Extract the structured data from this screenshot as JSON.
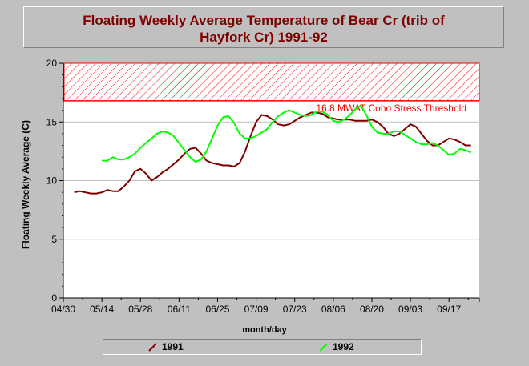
{
  "title_lines": [
    "Floating Weekly Average Temperature of Bear Cr (trib of",
    "Hayfork Cr) 1991-92"
  ],
  "chart_data": {
    "type": "line",
    "title": "Floating Weekly Average Temperature of Bear Cr (trib of Hayfork Cr) 1991-92",
    "xlabel": "month/day",
    "ylabel": "Floating Weekly Average (C)",
    "x_ticks": [
      "04/30",
      "05/14",
      "05/28",
      "06/11",
      "06/25",
      "07/09",
      "07/23",
      "08/06",
      "08/20",
      "09/03",
      "09/17"
    ],
    "x_unit": "day offset from 04/30",
    "xlim": [
      0,
      151
    ],
    "ylim": [
      0,
      20
    ],
    "y_ticks": [
      0,
      5,
      10,
      15,
      20
    ],
    "grid": "horizontal",
    "threshold": {
      "value": 16.8,
      "label": "16.8 MWAT Coho Stress Threshold",
      "color": "#ff0000",
      "band_top": 20
    },
    "series": [
      {
        "name": "1991",
        "color": "#800000",
        "x": [
          4,
          6,
          8,
          10,
          12,
          14,
          16,
          18,
          20,
          22,
          24,
          26,
          28,
          30,
          32,
          34,
          36,
          38,
          40,
          42,
          44,
          46,
          48,
          50,
          52,
          54,
          56,
          58,
          60,
          62,
          64,
          66,
          68,
          70,
          72,
          74,
          76,
          78,
          80,
          82,
          84,
          86,
          88,
          90,
          92,
          94,
          96,
          98,
          100,
          102,
          104,
          106,
          108,
          110,
          112,
          114,
          116,
          118,
          120,
          122,
          124,
          126,
          128,
          130,
          132,
          134,
          136,
          138,
          140,
          142,
          144,
          146,
          148
        ],
        "y": [
          9.0,
          9.1,
          9.0,
          8.9,
          8.9,
          9.0,
          9.2,
          9.1,
          9.1,
          9.5,
          10.0,
          10.8,
          11.0,
          10.6,
          10.0,
          10.3,
          10.7,
          11.0,
          11.4,
          11.8,
          12.3,
          12.7,
          12.8,
          12.3,
          11.7,
          11.5,
          11.4,
          11.3,
          11.3,
          11.2,
          11.5,
          12.5,
          13.8,
          15.0,
          15.6,
          15.5,
          15.2,
          14.8,
          14.7,
          14.8,
          15.1,
          15.4,
          15.6,
          15.8,
          15.8,
          15.7,
          15.4,
          15.3,
          15.2,
          15.2,
          15.2,
          15.1,
          15.1,
          15.1,
          15.2,
          15.0,
          14.6,
          14.0,
          13.8,
          14.0,
          14.4,
          14.8,
          14.6,
          14.0,
          13.4,
          13.0,
          13.0,
          13.3,
          13.6,
          13.5,
          13.3,
          13.0,
          13.0
        ]
      },
      {
        "name": "1992",
        "color": "#00ff00",
        "x": [
          14,
          16,
          18,
          20,
          22,
          24,
          26,
          28,
          30,
          32,
          34,
          36,
          38,
          40,
          42,
          44,
          46,
          48,
          50,
          52,
          54,
          56,
          58,
          60,
          62,
          64,
          66,
          68,
          70,
          72,
          74,
          76,
          78,
          80,
          82,
          84,
          86,
          88,
          90,
          92,
          94,
          96,
          98,
          100,
          102,
          104,
          106,
          108,
          110,
          112,
          114,
          116,
          118,
          120,
          122,
          124,
          126,
          128,
          130,
          132,
          134,
          136,
          138,
          140,
          142,
          144,
          146,
          148
        ],
        "y": [
          11.7,
          11.7,
          12.0,
          11.8,
          11.8,
          12.0,
          12.3,
          12.8,
          13.2,
          13.6,
          14.0,
          14.2,
          14.1,
          13.8,
          13.2,
          12.6,
          12.0,
          11.6,
          11.8,
          12.5,
          13.6,
          14.7,
          15.4,
          15.5,
          14.9,
          14.0,
          13.6,
          13.6,
          13.8,
          14.1,
          14.4,
          15.0,
          15.5,
          15.8,
          16.0,
          15.8,
          15.6,
          15.5,
          15.6,
          15.9,
          15.9,
          15.6,
          15.1,
          15.0,
          15.2,
          15.6,
          16.1,
          16.4,
          15.6,
          14.6,
          14.1,
          14.0,
          14.0,
          14.2,
          14.2,
          13.9,
          13.6,
          13.3,
          13.1,
          13.1,
          13.2,
          13.0,
          12.6,
          12.2,
          12.3,
          12.7,
          12.6,
          12.4
        ]
      }
    ],
    "legend_position": "bottom"
  },
  "legend": {
    "items": [
      "1991",
      "1992"
    ]
  }
}
